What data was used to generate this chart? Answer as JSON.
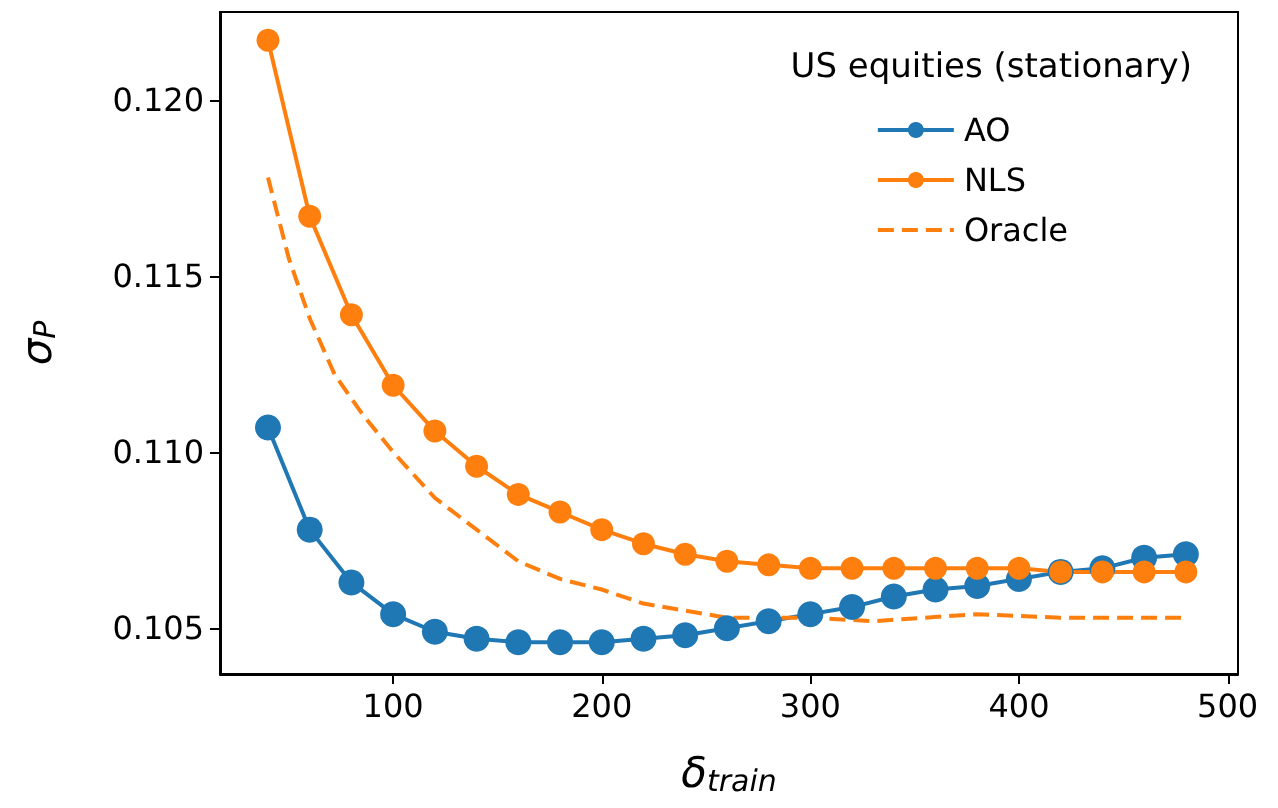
{
  "chart_data": {
    "type": "line",
    "xlabel": "δ$_{train}$",
    "ylabel": "σ$_{P}$",
    "legend_title": "US equities (stationary)",
    "legend": "top right",
    "marker": "circle",
    "grid": false,
    "x": [
      40,
      60,
      80,
      100,
      120,
      140,
      160,
      180,
      200,
      220,
      240,
      260,
      280,
      300,
      320,
      340,
      360,
      380,
      400,
      420,
      440,
      460,
      480
    ],
    "xlim": [
      17,
      505
    ],
    "xticks": [
      100,
      200,
      300,
      400,
      500
    ],
    "ylim": [
      0.1037,
      0.1225
    ],
    "yticks": [
      0.105,
      {
        "value": 0.11,
        "label": "0.110"
      },
      0.115,
      {
        "value": 0.12,
        "label": "0.120"
      }
    ],
    "series": [
      {
        "name": "AO",
        "color": "#1f77b4",
        "values": [
          0.1107,
          0.1078,
          0.1063,
          0.1054,
          0.1049,
          0.1047,
          0.1046,
          0.1046,
          0.1046,
          0.1047,
          0.1048,
          0.105,
          0.1052,
          0.1054,
          0.1056,
          0.1059,
          0.1061,
          0.1062,
          0.1064,
          0.1066,
          0.1067,
          0.107,
          0.1071
        ]
      },
      {
        "name": "NLS",
        "color": "#ff7f0e",
        "values": [
          0.1217,
          0.1167,
          0.1139,
          0.1119,
          0.1106,
          0.1096,
          0.1088,
          0.1083,
          0.1078,
          0.1074,
          0.1071,
          0.1069,
          0.1068,
          0.1067,
          0.1067,
          0.1067,
          0.1067,
          0.1067,
          0.1067,
          0.1066,
          0.1066,
          0.1066,
          0.1066
        ]
      },
      {
        "name": "Oracle",
        "color": "#ff7f0e",
        "marker": "none",
        "line_style": "dashed",
        "x": [
          40,
          50,
          60,
          72,
          85,
          100,
          120,
          140,
          160,
          180,
          200,
          220,
          240,
          260,
          280,
          300,
          330,
          380,
          420,
          480
        ],
        "values": [
          0.1178,
          0.1155,
          0.1138,
          0.1122,
          0.1111,
          0.11,
          0.1087,
          0.1078,
          0.1069,
          0.1064,
          0.1061,
          0.1057,
          0.1055,
          0.1053,
          0.1053,
          0.1053,
          0.1052,
          0.1054,
          0.1053,
          0.1053
        ]
      }
    ]
  }
}
